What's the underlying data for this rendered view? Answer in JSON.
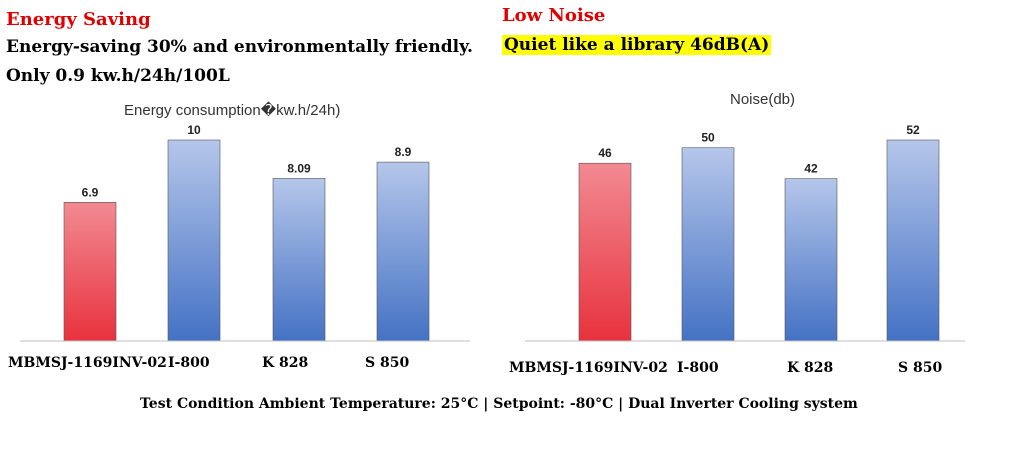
{
  "left_heading": "Energy Saving",
  "left_text_line1": "Energy-saving 30% and environmentally friendly.",
  "left_text_line2": "Only 0.9 kw.h/24h/100L",
  "right_heading": "Low Noise",
  "right_text": "Quiet like a library 46dB(A)",
  "footer": "Test Condition  Ambient Temperature: 25°C | Setpoint: -80°C | Dual Inverter Cooling system",
  "colors": {
    "highlight_bar": "#e8323e",
    "other_bars": "#5a7fcf",
    "heading_red": "#e00000",
    "text_highlight": "#ffff00"
  },
  "chart_data": [
    {
      "type": "bar",
      "title": "Energy consumption�kw.h/24h)",
      "categories": [
        "MBMSJ-1169INV-02",
        "I-800",
        "K 828",
        "S 850"
      ],
      "values": [
        6.9,
        10,
        8.09,
        8.9
      ],
      "value_labels": [
        "6.9",
        "10",
        "8.09",
        "8.9"
      ],
      "ylim": [
        0,
        10.5
      ],
      "grid": false,
      "highlight_index": 0
    },
    {
      "type": "bar",
      "title": "Noise(db)",
      "categories": [
        "MBMSJ-1169INV-02",
        "I-800",
        "K 828",
        "S 850"
      ],
      "values": [
        46,
        50,
        42,
        52
      ],
      "value_labels": [
        "46",
        "50",
        "42",
        "52"
      ],
      "ylim": [
        0,
        55
      ],
      "grid": false,
      "highlight_index": 0
    }
  ]
}
